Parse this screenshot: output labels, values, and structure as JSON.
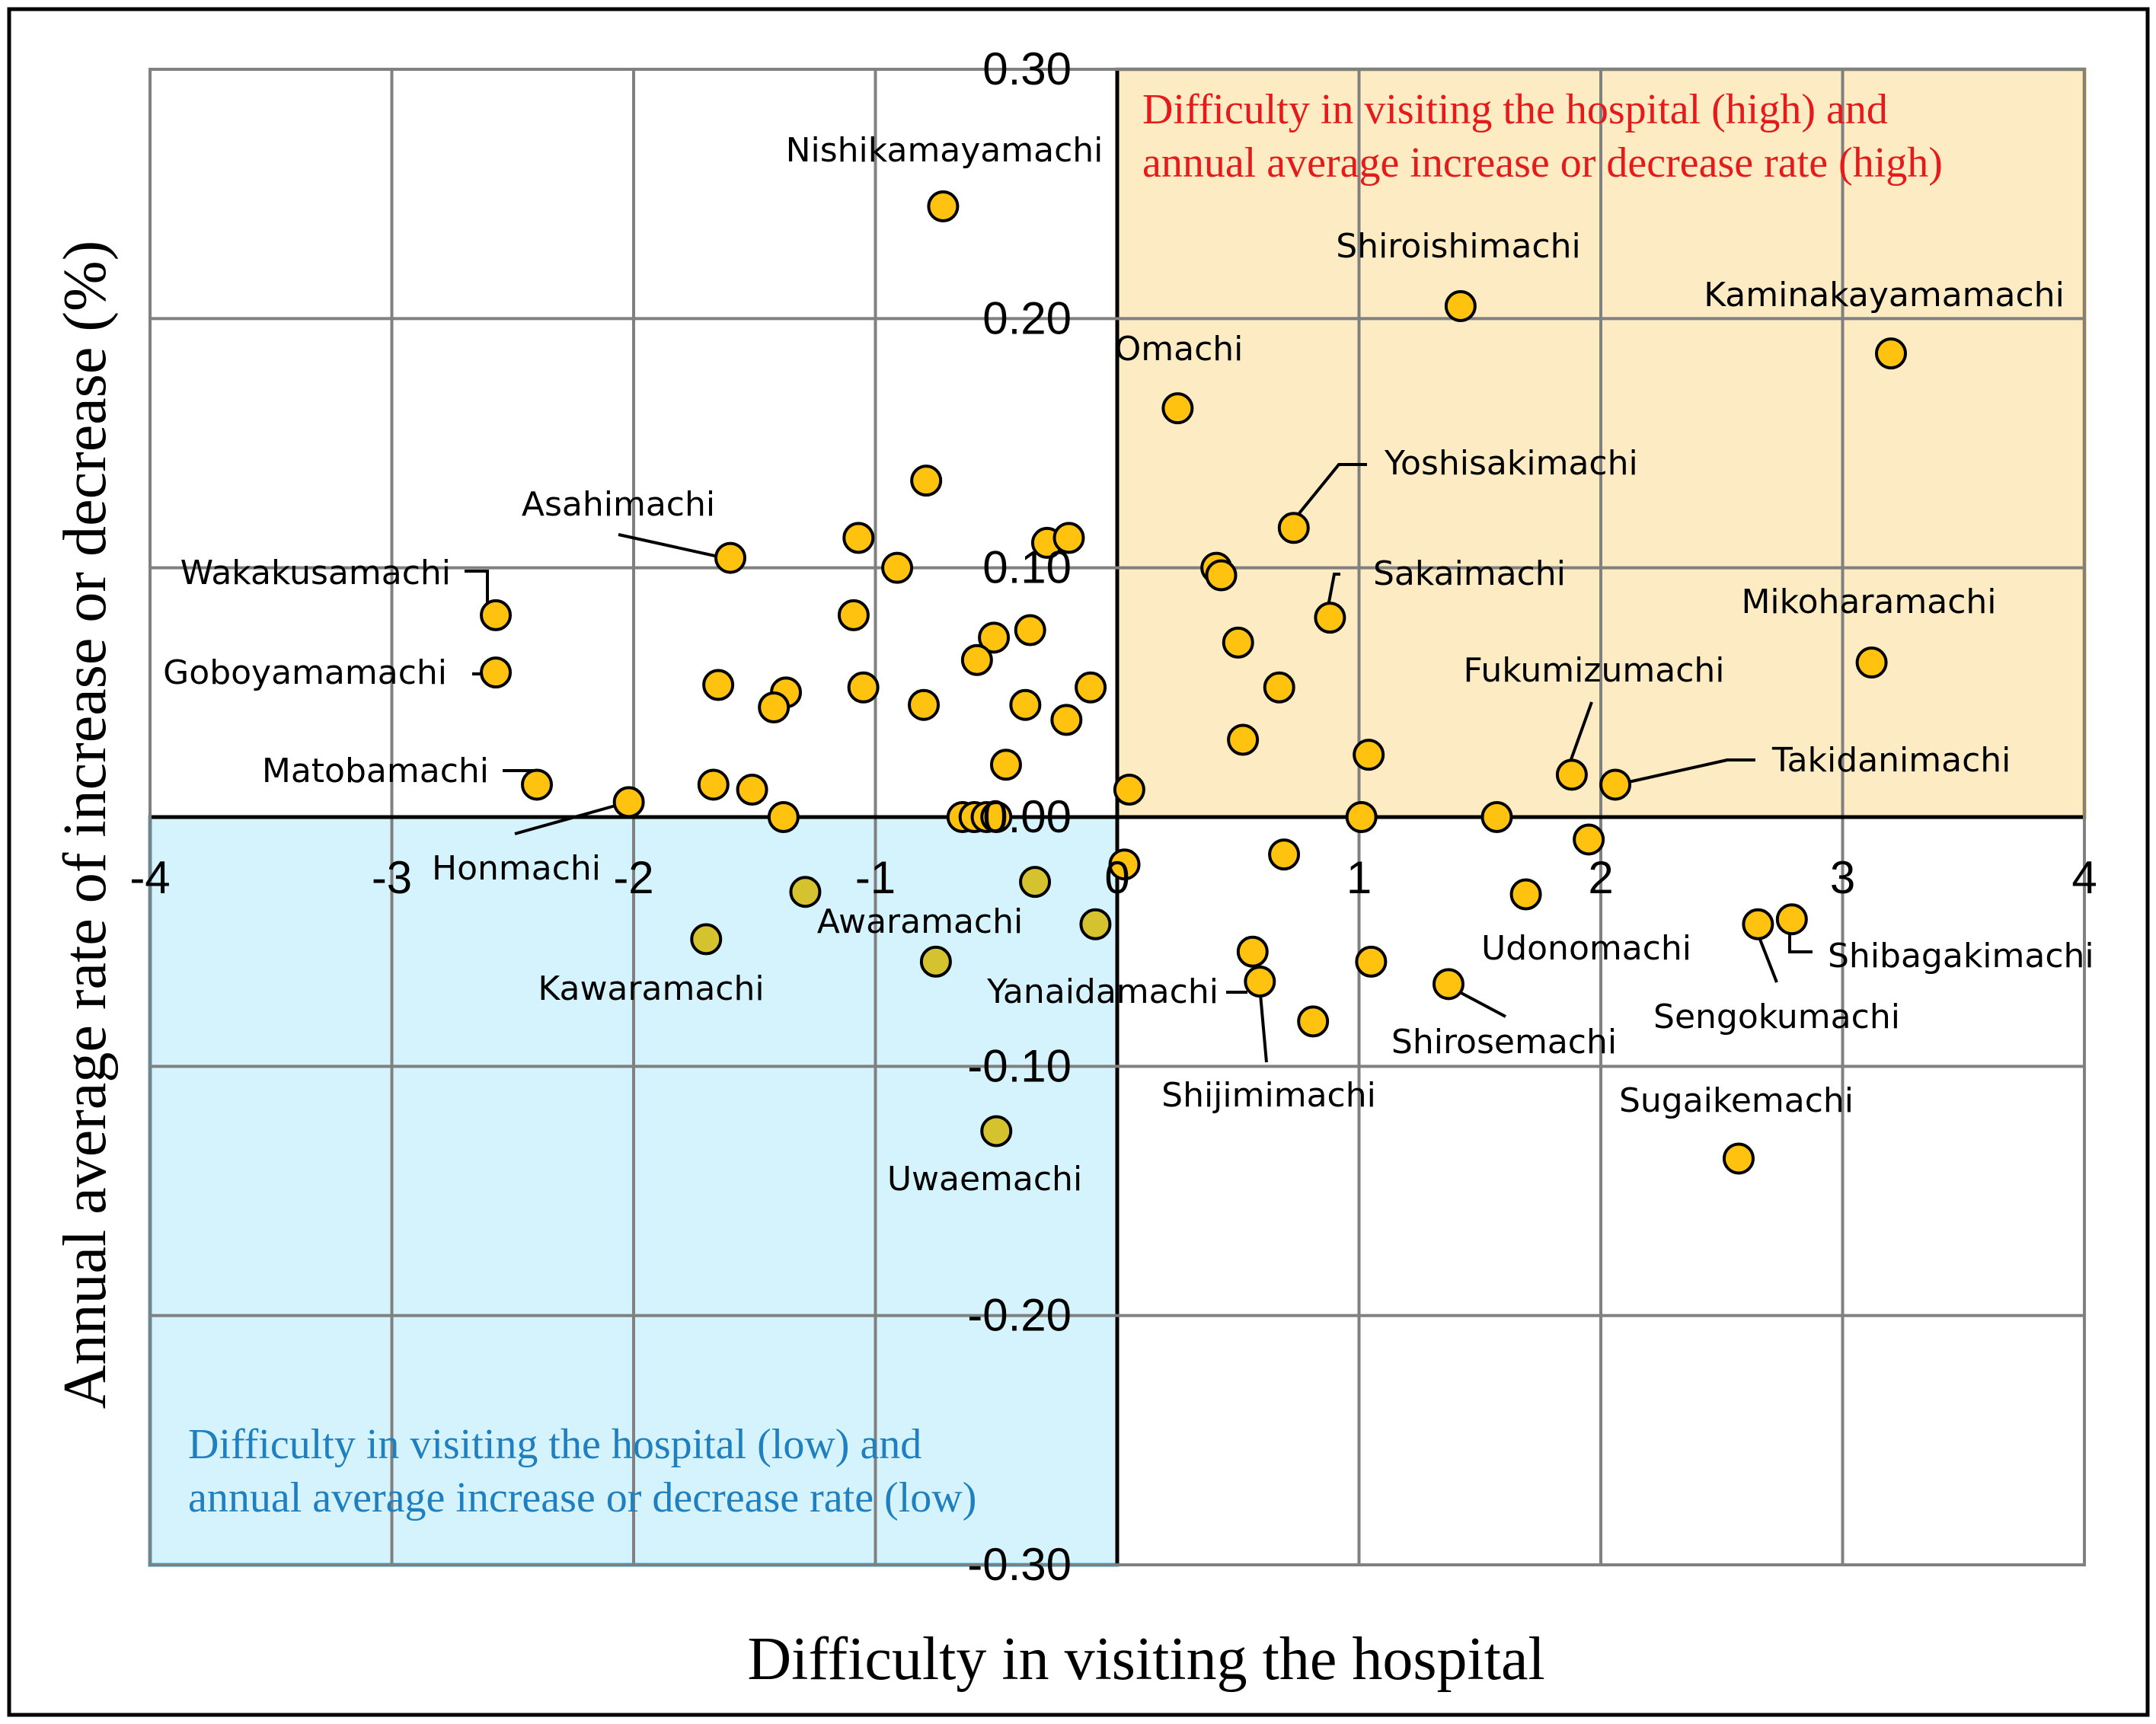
{
  "chart_data": {
    "type": "scatter",
    "xlabel": "Difficulty in visiting the hospital",
    "ylabel": "Annual average rate of increase or decrease (%)",
    "xlim": [
      -4,
      4
    ],
    "ylim": [
      -0.3,
      0.3
    ],
    "x_ticks": [
      "-4",
      "-3",
      "-2",
      "-1",
      "0",
      "1",
      "2",
      "3",
      "4"
    ],
    "y_ticks": [
      "0.30",
      "0.20",
      "0.10",
      "0.00",
      "-0.10",
      "-0.20",
      "-0.30"
    ],
    "grid": true,
    "colors": {
      "point": "#FFC20E",
      "point_low": "#D4C22E",
      "high_region_fill": "#FCEBC3",
      "high_region_border": "#F2B51B",
      "high_region_text": "#E51A1A",
      "low_region_fill": "#D4F3FC",
      "low_region_border": "#28AEE0",
      "low_region_text": "#1F7FBF"
    },
    "regions": [
      {
        "id": "high",
        "x0": 0,
        "x1": 4,
        "y0": 0.0,
        "y1": 0.3,
        "lines": [
          "Difficulty in visiting the hospital (high) and",
          "annual average increase or decrease rate (high)"
        ]
      },
      {
        "id": "low",
        "x0": -4,
        "x1": 0,
        "y0": -0.3,
        "y1": 0.0,
        "lines": [
          "Difficulty in visiting the hospital (low) and",
          "annual average increase or decrease rate (low)"
        ]
      }
    ],
    "points": [
      {
        "name": "Nishikamayamachi",
        "x": -0.72,
        "y": 0.245
      },
      {
        "name": "Shiroishimachi",
        "x": 1.42,
        "y": 0.205
      },
      {
        "name": "Kaminakayamamachi",
        "x": 3.2,
        "y": 0.186
      },
      {
        "name": "Omachi",
        "x": 0.25,
        "y": 0.164
      },
      {
        "name": "Yoshisakimachi",
        "x": 0.73,
        "y": 0.116
      },
      {
        "name": "Asahimachi",
        "x": -1.6,
        "y": 0.104
      },
      {
        "name": "Wakakusamachi",
        "x": -2.57,
        "y": 0.081
      },
      {
        "name": "Sakaimachi",
        "x": 0.88,
        "y": 0.08
      },
      {
        "name": "Mikoharamachi",
        "x": 3.12,
        "y": 0.062
      },
      {
        "name": "Goboyamamachi",
        "x": -2.57,
        "y": 0.058
      },
      {
        "name": "Fukumizumachi",
        "x": 1.88,
        "y": 0.017
      },
      {
        "name": "Takidanimachi",
        "x": 2.06,
        "y": 0.013
      },
      {
        "name": "Matobamachi",
        "x": -2.4,
        "y": 0.013
      },
      {
        "name": "Honmachi",
        "x": -2.02,
        "y": 0.006
      },
      {
        "name": "Awaramachi",
        "x": -0.75,
        "y": -0.058
      },
      {
        "name": "Kawaramachi",
        "x": -1.7,
        "y": -0.049
      },
      {
        "name": "Uwaemachi",
        "x": -0.5,
        "y": -0.126
      },
      {
        "name": "Yanaidamachi",
        "x": 0.59,
        "y": -0.066
      },
      {
        "name": "Shijimimachi",
        "x": 0.56,
        "y": -0.054
      },
      {
        "name": "Udonomachi",
        "x": 1.69,
        "y": -0.031
      },
      {
        "name": "Shirosemachi",
        "x": 1.37,
        "y": -0.067
      },
      {
        "name": "Shibagakimachi",
        "x": 2.79,
        "y": -0.041
      },
      {
        "name": "Sengokumachi",
        "x": 2.65,
        "y": -0.043
      },
      {
        "name": "Sugaikemachi",
        "x": 2.57,
        "y": -0.137
      },
      {
        "name": "",
        "x": -0.79,
        "y": 0.135
      },
      {
        "name": "",
        "x": -1.07,
        "y": 0.112
      },
      {
        "name": "",
        "x": -0.91,
        "y": 0.1
      },
      {
        "name": "",
        "x": -0.29,
        "y": 0.11
      },
      {
        "name": "",
        "x": -0.2,
        "y": 0.112
      },
      {
        "name": "",
        "x": 0.41,
        "y": 0.1
      },
      {
        "name": "",
        "x": 0.43,
        "y": 0.097
      },
      {
        "name": "",
        "x": -1.09,
        "y": 0.081
      },
      {
        "name": "",
        "x": -0.36,
        "y": 0.075
      },
      {
        "name": "",
        "x": -0.51,
        "y": 0.072
      },
      {
        "name": "",
        "x": -0.58,
        "y": 0.063
      },
      {
        "name": "",
        "x": 0.5,
        "y": 0.07
      },
      {
        "name": "",
        "x": -1.65,
        "y": 0.053
      },
      {
        "name": "",
        "x": -1.05,
        "y": 0.052
      },
      {
        "name": "",
        "x": -1.37,
        "y": 0.05
      },
      {
        "name": "",
        "x": -1.42,
        "y": 0.044
      },
      {
        "name": "",
        "x": -0.8,
        "y": 0.045
      },
      {
        "name": "",
        "x": -0.38,
        "y": 0.045
      },
      {
        "name": "",
        "x": -0.21,
        "y": 0.039
      },
      {
        "name": "",
        "x": -0.11,
        "y": 0.052
      },
      {
        "name": "",
        "x": 0.67,
        "y": 0.052
      },
      {
        "name": "",
        "x": 0.52,
        "y": 0.031
      },
      {
        "name": "",
        "x": -0.46,
        "y": 0.021
      },
      {
        "name": "",
        "x": 1.04,
        "y": 0.025
      },
      {
        "name": "",
        "x": -1.67,
        "y": 0.013
      },
      {
        "name": "",
        "x": -1.51,
        "y": 0.011
      },
      {
        "name": "",
        "x": 0.05,
        "y": 0.011
      },
      {
        "name": "",
        "x": -1.38,
        "y": 0.0
      },
      {
        "name": "",
        "x": -0.64,
        "y": 0.0
      },
      {
        "name": "",
        "x": -0.59,
        "y": 0.0
      },
      {
        "name": "",
        "x": -0.54,
        "y": 0.0
      },
      {
        "name": "",
        "x": -0.5,
        "y": 0.0
      },
      {
        "name": "",
        "x": 1.01,
        "y": 0.0
      },
      {
        "name": "",
        "x": 1.57,
        "y": 0.0
      },
      {
        "name": "",
        "x": 1.95,
        "y": -0.009
      },
      {
        "name": "",
        "x": 0.69,
        "y": -0.015
      },
      {
        "name": "",
        "x": 0.03,
        "y": -0.019
      },
      {
        "name": "",
        "x": -1.29,
        "y": -0.03
      },
      {
        "name": "",
        "x": -0.34,
        "y": -0.026
      },
      {
        "name": "",
        "x": -0.09,
        "y": -0.043
      },
      {
        "name": "",
        "x": 1.05,
        "y": -0.058
      },
      {
        "name": "",
        "x": 0.81,
        "y": -0.082
      }
    ]
  }
}
